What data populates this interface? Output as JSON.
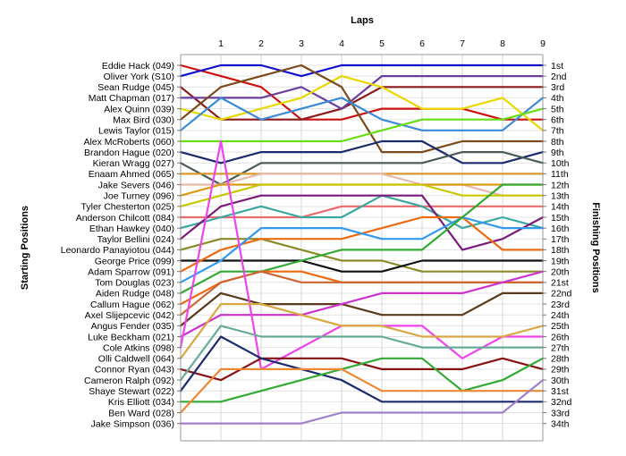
{
  "chart_data": {
    "type": "line",
    "title": "Laps",
    "ylabel_left": "Starting Positions",
    "ylabel_right": "Finishing Positions",
    "x": [
      0,
      1,
      2,
      3,
      4,
      5,
      6,
      7,
      8,
      9
    ],
    "x_tick_labels": [
      "1",
      "2",
      "3",
      "4",
      "5",
      "6",
      "7",
      "8",
      "9"
    ],
    "ylim": [
      1,
      34
    ],
    "y_inverted": true,
    "grid": true,
    "drivers": [
      "Eddie Hack (049)",
      "Oliver York (S10)",
      "Sean Rudge (045)",
      "Matt Chapman (017)",
      "Alex Quinn (039)",
      "Max Bird (030)",
      "Lewis Taylor (015)",
      "Alex McRoberts (060)",
      "Brandon Hague (020)",
      "Kieran Wragg (027)",
      "Enaam Ahmed (065)",
      "Jake Severs (046)",
      "Joe Turney (096)",
      "Tyler Chesterton (025)",
      "Anderson Chilcott (084)",
      "Ethan Hawkey (040)",
      "Taylor Bellini (024)",
      "Leonardo Panayiotou (044)",
      "George Price (099)",
      "Adam Sparrow (091)",
      "Tom Douglas (023)",
      "Aiden Rudge (048)",
      "Callum Hague (062)",
      "Axel Slijepcevic (042)",
      "Angus Fender (035)",
      "Luke Beckham (021)",
      "Cole Atkins (098)",
      "Olli Caldwell (064)",
      "Connor Ryan (043)",
      "Cameron Ralph (092)",
      "Shaye Stewart (022)",
      "Kris Elliott (034)",
      "Ben Ward (028)",
      "Jake Simpson (036)"
    ],
    "finishing_positions": [
      "1st",
      "2nd",
      "3rd",
      "4th",
      "5th",
      "6th",
      "7th",
      "8th",
      "9th",
      "10th",
      "11th",
      "12th",
      "13th",
      "14th",
      "15th",
      "16th",
      "17th",
      "18th",
      "19th",
      "20th",
      "21st",
      "22nd",
      "23rd",
      "24th",
      "25th",
      "26th",
      "27th",
      "28th",
      "29th",
      "30th",
      "31st",
      "32nd",
      "33rd",
      "34th"
    ],
    "series": [
      {
        "color": "#cc1111",
        "values": [
          1,
          2,
          3,
          6,
          6,
          5,
          5,
          5,
          6,
          6
        ]
      },
      {
        "color": "#1010cc",
        "values": [
          2,
          1,
          1,
          2,
          1,
          1,
          1,
          1,
          1,
          1
        ]
      },
      {
        "color": "#8b1a1a",
        "values": [
          3,
          6,
          6,
          6,
          5,
          3,
          3,
          3,
          3,
          3
        ]
      },
      {
        "color": "#6b3fa0",
        "values": [
          4,
          4,
          4,
          3,
          5,
          2,
          2,
          2,
          2,
          2
        ]
      },
      {
        "color": "#e8d800",
        "values": [
          5,
          6,
          5,
          4,
          2,
          3,
          5,
          5,
          4,
          7
        ]
      },
      {
        "color": "#7a4a1a",
        "values": [
          6,
          3,
          2,
          1,
          3,
          9,
          9,
          8,
          8,
          8
        ]
      },
      {
        "color": "#3a8ad8",
        "values": [
          7,
          4,
          6,
          5,
          4,
          6,
          7,
          7,
          7,
          4
        ]
      },
      {
        "color": "#66dd11",
        "values": [
          8,
          8,
          8,
          8,
          8,
          7,
          6,
          6,
          6,
          5
        ]
      },
      {
        "color": "#1a2a6c",
        "values": [
          9,
          10,
          9,
          9,
          9,
          8,
          8,
          10,
          10,
          9
        ]
      },
      {
        "color": "#4a5a5a",
        "values": [
          10,
          12,
          10,
          10,
          10,
          10,
          10,
          9,
          9,
          10
        ]
      },
      {
        "color": "#d69a2a",
        "values": [
          11,
          11,
          11,
          11,
          11,
          11,
          11,
          11,
          11,
          11
        ]
      },
      {
        "color": "#e8b8a8",
        "values": [
          12,
          12,
          11,
          11,
          11,
          11,
          12,
          12,
          13,
          13
        ]
      },
      {
        "color": "#d89a10",
        "values": [
          13,
          12,
          12,
          12,
          12,
          12,
          12,
          12,
          12,
          12
        ]
      },
      {
        "color": "#c8c800",
        "values": [
          14,
          13,
          12,
          12,
          12,
          12,
          12,
          13,
          13,
          13
        ]
      },
      {
        "color": "#e86a6a",
        "values": [
          15,
          15,
          15,
          15,
          14,
          14,
          14,
          14,
          14,
          14
        ]
      },
      {
        "color": "#3aa8a0",
        "values": [
          16,
          15,
          14,
          15,
          15,
          13,
          14,
          16,
          15,
          16
        ]
      },
      {
        "color": "#7a1a7a",
        "values": [
          17,
          14,
          13,
          13,
          13,
          13,
          13,
          18,
          17,
          15
        ]
      },
      {
        "color": "#8a8a28",
        "values": [
          18,
          17,
          17,
          18,
          19,
          19,
          20,
          20,
          20,
          20
        ]
      },
      {
        "color": "#111111",
        "values": [
          19,
          19,
          19,
          19,
          20,
          20,
          19,
          19,
          19,
          19
        ]
      },
      {
        "color": "#ee6a10",
        "values": [
          20,
          18,
          17,
          17,
          17,
          16,
          15,
          15,
          18,
          18
        ]
      },
      {
        "color": "#3399ee",
        "values": [
          21,
          19,
          16,
          16,
          16,
          17,
          17,
          15,
          16,
          16
        ]
      },
      {
        "color": "#33aa33",
        "values": [
          22,
          20,
          20,
          19,
          18,
          18,
          18,
          15,
          12,
          12
        ]
      },
      {
        "color": "#ee6a10",
        "values": [
          23,
          21,
          20,
          20,
          21,
          21,
          21,
          21,
          21,
          21
        ]
      },
      {
        "color": "#cc6633",
        "values": [
          24,
          21,
          20,
          21,
          21,
          21,
          21,
          21,
          21,
          21
        ]
      },
      {
        "color": "#5a3a1a",
        "values": [
          25,
          22,
          23,
          23,
          23,
          24,
          24,
          24,
          22,
          22
        ]
      },
      {
        "color": "#cc33cc",
        "values": [
          26,
          24,
          24,
          24,
          23,
          22,
          22,
          22,
          21,
          20
        ]
      },
      {
        "color": "#ee44ee",
        "values": [
          27,
          8,
          29,
          27,
          25,
          25,
          25,
          28,
          26,
          26
        ]
      },
      {
        "color": "#d8a840",
        "values": [
          28,
          23,
          23,
          24,
          25,
          25,
          26,
          26,
          26,
          25
        ]
      },
      {
        "color": "#881111",
        "values": [
          29,
          30,
          28,
          28,
          28,
          29,
          29,
          29,
          28,
          29
        ]
      },
      {
        "color": "#66aa99",
        "values": [
          30,
          25,
          26,
          26,
          26,
          26,
          27,
          27,
          27,
          27
        ]
      },
      {
        "color": "#1a2a6c",
        "values": [
          31,
          26,
          28,
          29,
          30,
          32,
          32,
          32,
          32,
          32
        ]
      },
      {
        "color": "#33aa33",
        "values": [
          32,
          32,
          31,
          30,
          29,
          28,
          28,
          31,
          30,
          28
        ]
      },
      {
        "color": "#ee8833",
        "values": [
          33,
          29,
          29,
          29,
          29,
          31,
          31,
          31,
          31,
          31
        ]
      },
      {
        "color": "#a080c8",
        "values": [
          34,
          34,
          34,
          34,
          33,
          33,
          33,
          33,
          33,
          30
        ]
      }
    ]
  }
}
